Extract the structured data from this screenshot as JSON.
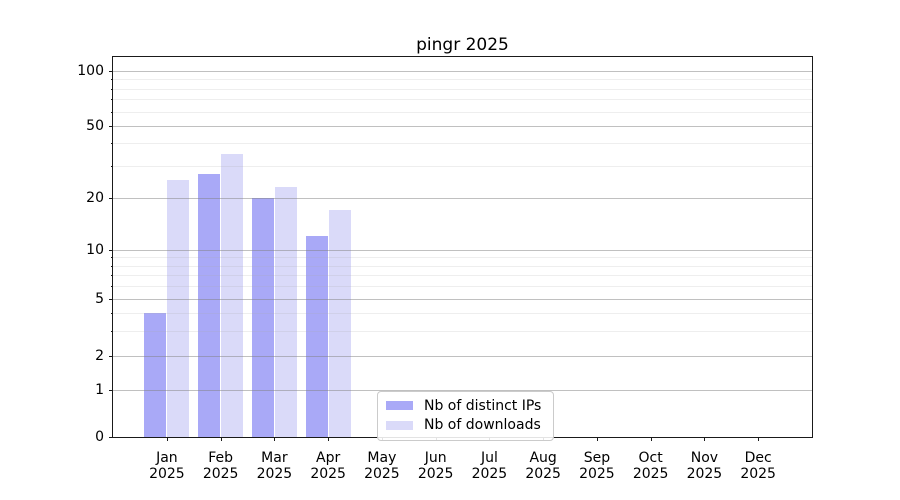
{
  "chart_data": {
    "type": "bar",
    "title": "pingr 2025",
    "categories": [
      "Jan 2025",
      "Feb 2025",
      "Mar 2025",
      "Apr 2025",
      "May 2025",
      "Jun 2025",
      "Jul 2025",
      "Aug 2025",
      "Sep 2025",
      "Oct 2025",
      "Nov 2025",
      "Dec 2025"
    ],
    "series": [
      {
        "name": "Nb of distinct IPs",
        "color": "#a9a9f7",
        "values": [
          4,
          27,
          20,
          12,
          0,
          0,
          0,
          0,
          0,
          0,
          0,
          0
        ]
      },
      {
        "name": "Nb of downloads",
        "color": "#dadaf9",
        "values": [
          25,
          35,
          23,
          17,
          0,
          0,
          0,
          0,
          0,
          0,
          0,
          0
        ]
      }
    ],
    "y_axis": {
      "scale": "log-like (symlog with 0 baseline)",
      "major_ticks": [
        0,
        1,
        2,
        5,
        10,
        20,
        50,
        100
      ],
      "minor_gridlines": [
        3,
        4,
        6,
        7,
        8,
        9,
        30,
        40,
        60,
        70,
        80,
        90
      ],
      "range_top": 120
    },
    "x_axis": {
      "label_line2": "2025"
    },
    "legend": {
      "position": "lower center",
      "entries": [
        "Nb of distinct IPs",
        "Nb of downloads"
      ]
    },
    "grid": true,
    "colors": {
      "bar_dark": "#a9a9f7",
      "bar_light": "#dadaf9",
      "grid_major": "#b5b5b5",
      "grid_minor": "#ececec",
      "spine": "#1a1a1a"
    }
  }
}
